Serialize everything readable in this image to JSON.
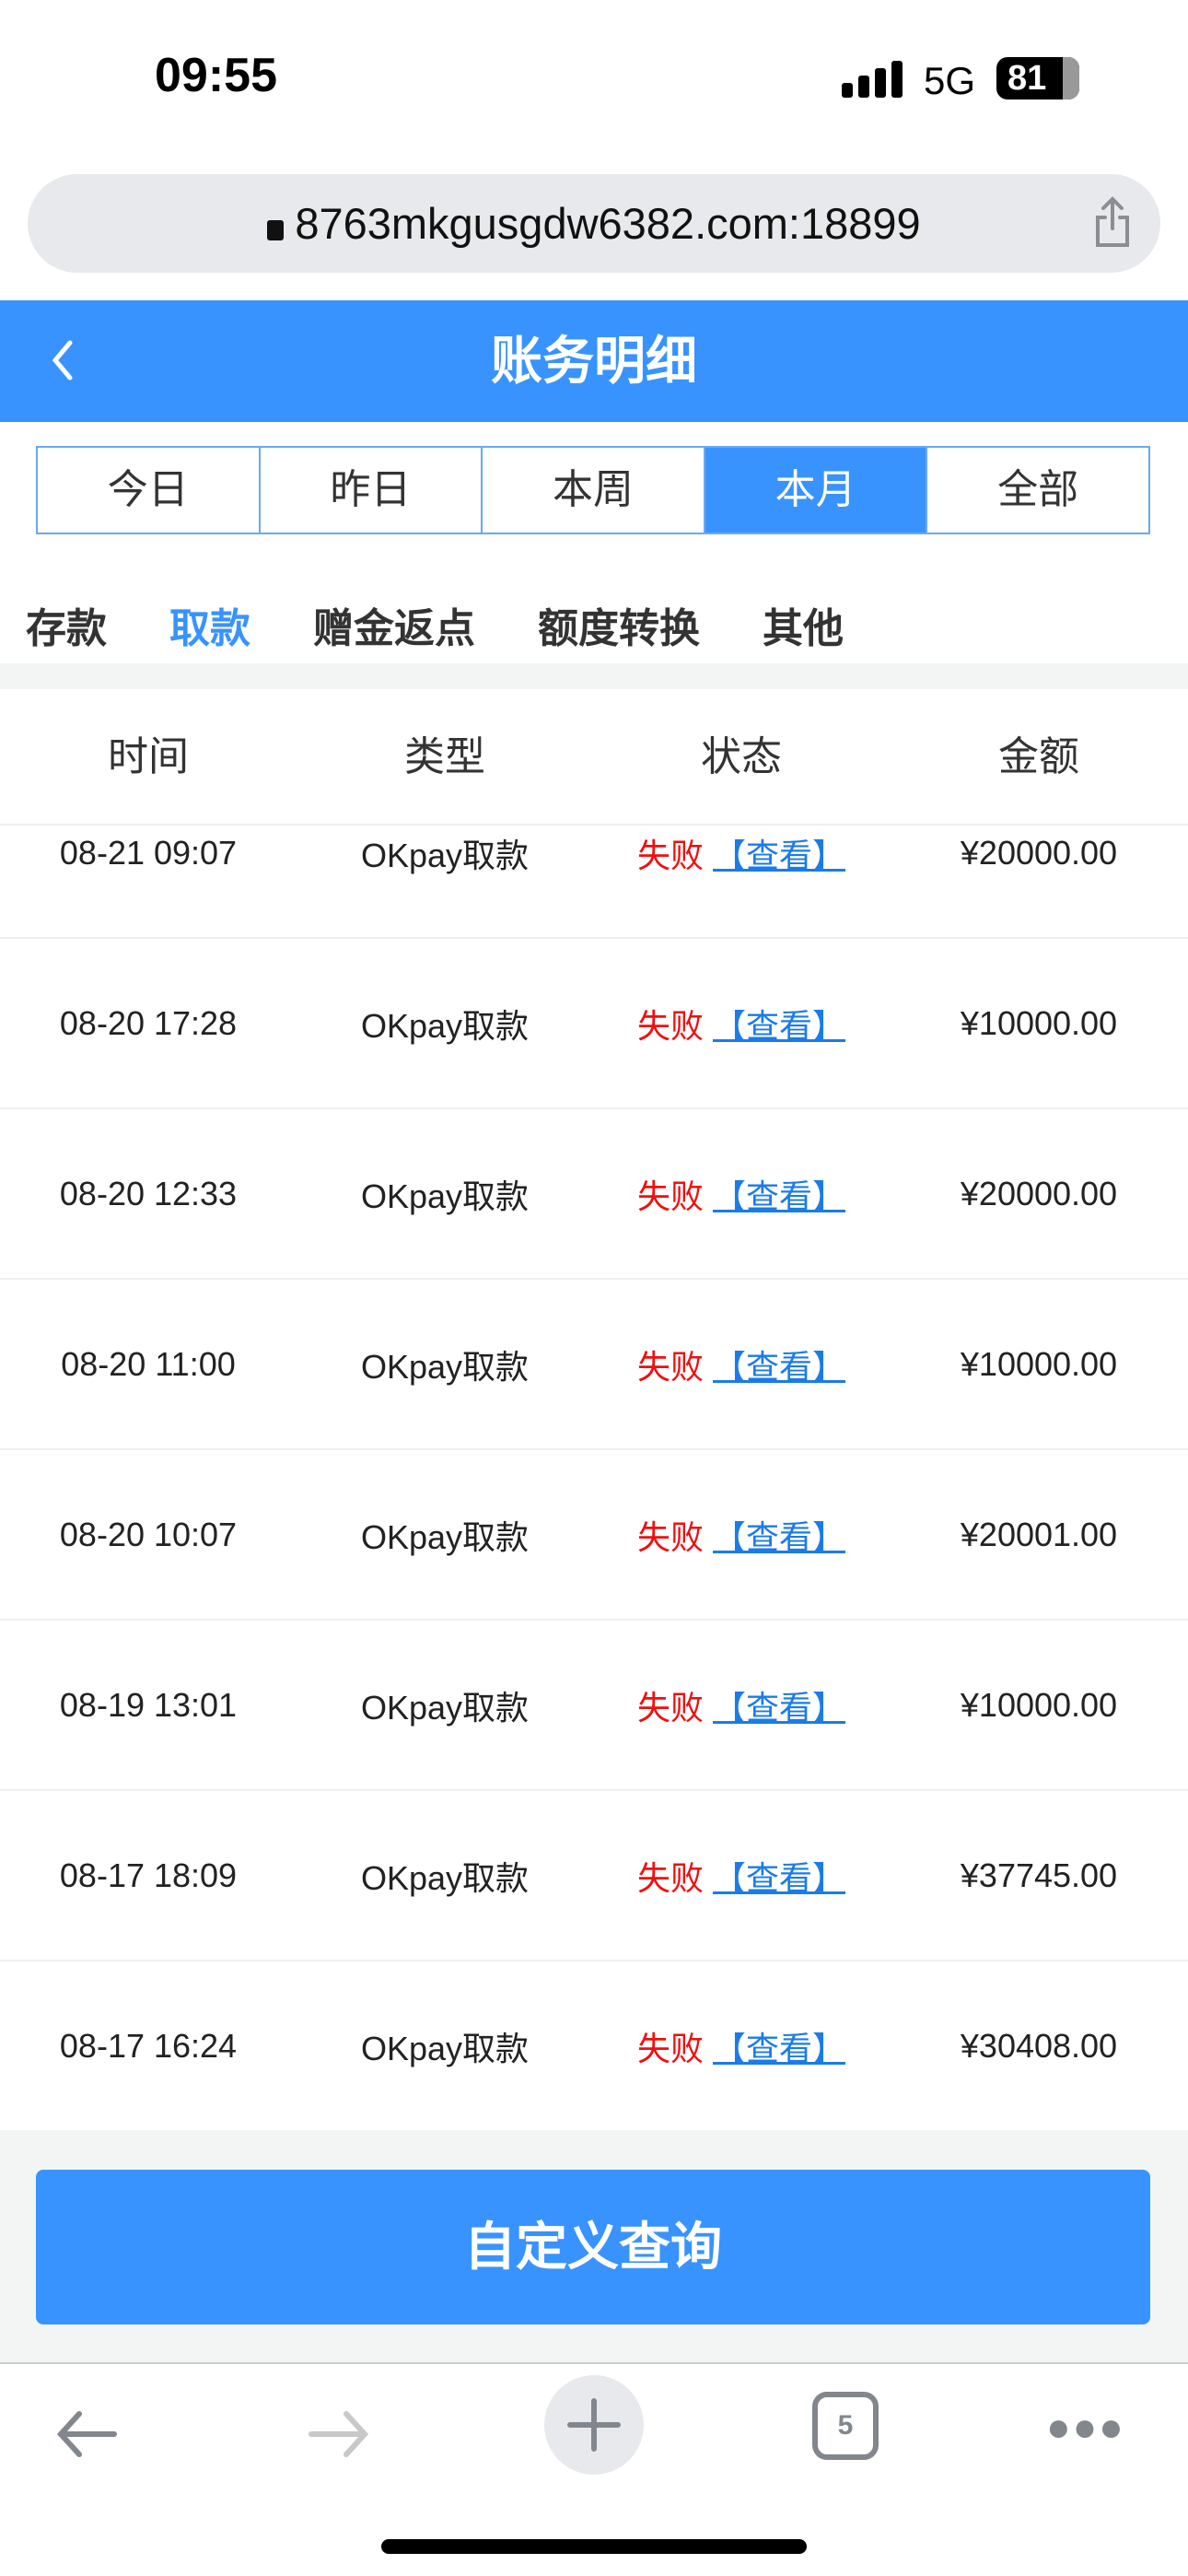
{
  "status_bar": {
    "time": "09:55",
    "network": "5G",
    "battery": "81"
  },
  "browser": {
    "url": "8763mkgusgdw6382.com:18899",
    "tab_count": "5"
  },
  "header": {
    "title": "账务明细"
  },
  "period_tabs": [
    {
      "label": "今日"
    },
    {
      "label": "昨日"
    },
    {
      "label": "本周"
    },
    {
      "label": "本月",
      "active": true
    },
    {
      "label": "全部"
    }
  ],
  "categories": [
    {
      "label": "存款"
    },
    {
      "label": "取款",
      "active": true
    },
    {
      "label": "赠金返点"
    },
    {
      "label": "额度转换"
    },
    {
      "label": "其他"
    }
  ],
  "table": {
    "columns": [
      "时间",
      "类型",
      "状态",
      "金额"
    ],
    "view_label": "【查看】",
    "rows": [
      {
        "time": "08-21 09:07",
        "type": "OKpay取款",
        "status": "失败",
        "amount": "¥20000.00"
      },
      {
        "time": "08-20 17:28",
        "type": "OKpay取款",
        "status": "失败",
        "amount": "¥10000.00"
      },
      {
        "time": "08-20 12:33",
        "type": "OKpay取款",
        "status": "失败",
        "amount": "¥20000.00"
      },
      {
        "time": "08-20 11:00",
        "type": "OKpay取款",
        "status": "失败",
        "amount": "¥10000.00"
      },
      {
        "time": "08-20 10:07",
        "type": "OKpay取款",
        "status": "失败",
        "amount": "¥20001.00"
      },
      {
        "time": "08-19 13:01",
        "type": "OKpay取款",
        "status": "失败",
        "amount": "¥10000.00"
      },
      {
        "time": "08-17 18:09",
        "type": "OKpay取款",
        "status": "失败",
        "amount": "¥37745.00"
      },
      {
        "time": "08-17 16:24",
        "type": "OKpay取款",
        "status": "失败",
        "amount": "¥30408.00"
      }
    ]
  },
  "custom_query_label": "自定义查询",
  "colors": {
    "accent": "#3893fe",
    "fail": "#f30d0d",
    "link": "#1b7be8"
  }
}
